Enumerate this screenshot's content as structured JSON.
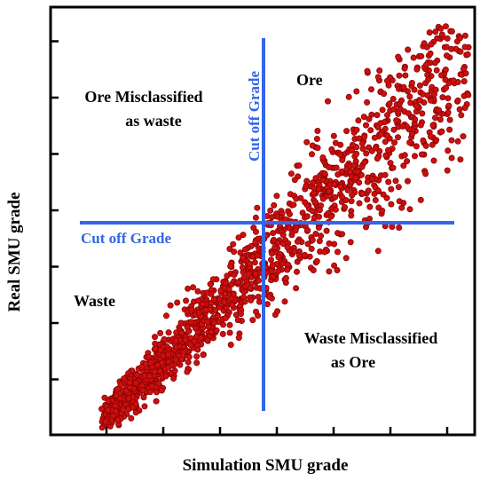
{
  "chart_data": {
    "type": "scatter",
    "xlabel": "Simulation SMU grade",
    "ylabel": "Real SMU grade",
    "xlim": [
      0,
      7
    ],
    "ylim": [
      0,
      7
    ],
    "cutoff": {
      "x": 3.8,
      "y": 3.0
    },
    "cutoff_labels": {
      "vertical": "Cut off Grade",
      "horizontal": "Cut off Grade"
    },
    "quadrants": {
      "ore": "Ore",
      "ore_misclassified": [
        "Ore Misclassified",
        "as waste"
      ],
      "waste": "Waste",
      "waste_misclassified": [
        "Waste Misclassified",
        "as Ore"
      ]
    },
    "trend": {
      "x_min": 0.9,
      "x_max": 6.9,
      "y_at_x_min": 0.3,
      "y_at_x_max": 6.2,
      "count": 1500
    },
    "colors": {
      "points": "#cc1010",
      "points_edge": "#8b0000",
      "cutoff_lines": "#3366e8",
      "axes": "#000000",
      "text": "#000000",
      "cutoff_text": "#3366e8"
    }
  }
}
